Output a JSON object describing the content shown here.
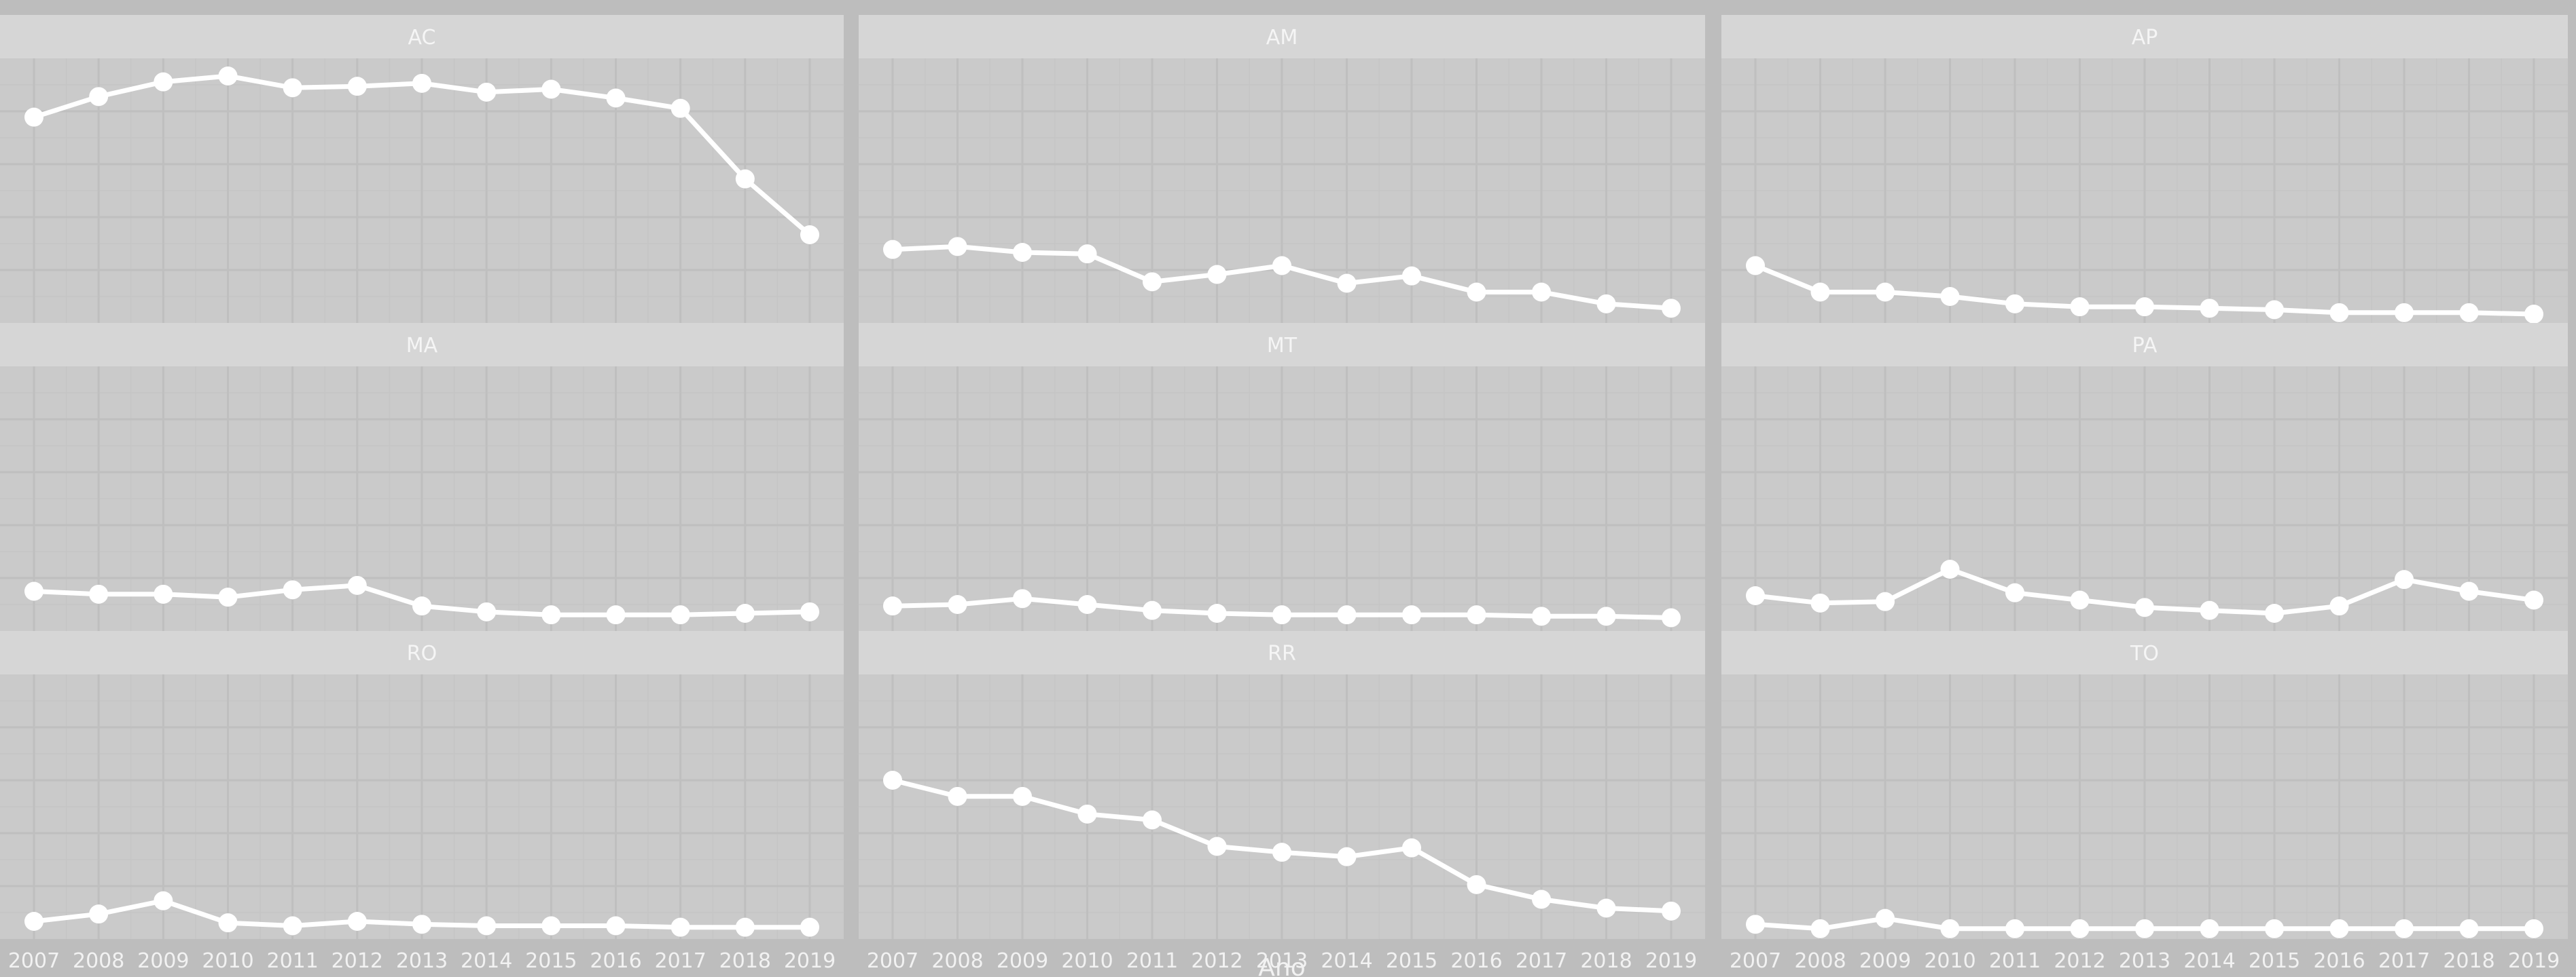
{
  "chart_data": {
    "type": "line",
    "layout": "facet_wrap",
    "ncol": 3,
    "xlabel": "Ano",
    "ylabel": "",
    "show_y_ticks": false,
    "grid": true,
    "x": [
      2007,
      2008,
      2009,
      2010,
      2011,
      2012,
      2013,
      2014,
      2015,
      2016,
      2017,
      2018,
      2019
    ],
    "ylim": [
      0,
      90
    ],
    "facets": [
      {
        "name": "AC",
        "values": [
          70,
          77,
          82,
          84,
          80,
          80.5,
          81.5,
          78.5,
          79.5,
          76.5,
          73,
          49,
          30
        ]
      },
      {
        "name": "AM",
        "values": [
          25,
          26,
          24,
          23.5,
          14,
          16.5,
          19.5,
          13.5,
          16,
          10.5,
          10.5,
          6.5,
          5
        ]
      },
      {
        "name": "AP",
        "values": [
          19.5,
          10.5,
          10.5,
          9,
          6.5,
          5.5,
          5.5,
          5,
          4.5,
          3.5,
          3.5,
          3.5,
          3
        ]
      },
      {
        "name": "MA",
        "values": [
          13.5,
          12.5,
          12.5,
          11.5,
          14,
          15.5,
          8.5,
          6.5,
          5.5,
          5.5,
          5.5,
          6,
          6.5
        ]
      },
      {
        "name": "MT",
        "values": [
          8.5,
          9,
          11,
          9,
          7,
          6,
          5.5,
          5.5,
          5.5,
          5.5,
          5,
          5,
          4.5
        ]
      },
      {
        "name": "PA",
        "values": [
          12,
          9.5,
          10,
          21,
          13,
          10.5,
          8,
          7,
          6,
          8.5,
          17.5,
          13.5,
          10.5
        ]
      },
      {
        "name": "RO",
        "values": [
          6,
          8.5,
          13,
          5.5,
          4.5,
          6,
          5,
          4.5,
          4.5,
          4.5,
          4,
          4,
          4
        ]
      },
      {
        "name": "RR",
        "values": [
          54,
          48.5,
          48.5,
          42.5,
          40.5,
          31.5,
          29.5,
          28,
          31,
          18.5,
          13.5,
          10.5,
          9.5
        ]
      },
      {
        "name": "TO",
        "values": [
          5,
          3.5,
          7,
          3.5,
          3.5,
          3.5,
          3.5,
          3.5,
          3.5,
          3.5,
          3.5,
          3.5,
          3.5
        ]
      }
    ]
  }
}
